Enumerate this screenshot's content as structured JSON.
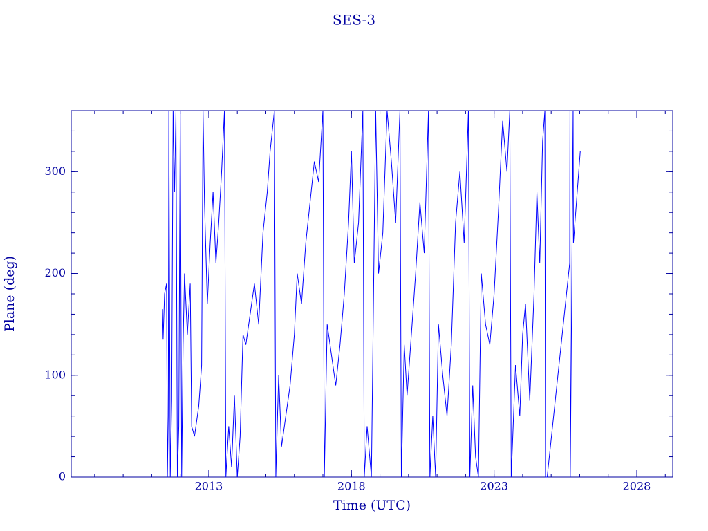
{
  "chart_data": {
    "type": "line",
    "title": "SES-3",
    "xlabel": "Time (UTC)",
    "ylabel": "Plane (deg)",
    "xlim": [
      2008.18,
      2029.26
    ],
    "xticks": [
      2013,
      2018,
      2023,
      2028
    ],
    "ylim": [
      0,
      360
    ],
    "yticks": [
      0,
      100,
      200,
      300
    ],
    "axis_color": "#0000a0",
    "series": [
      {
        "name": "SES-3",
        "color": "#0000ff",
        "x": [
          2011.38,
          2011.4,
          2011.45,
          2011.52,
          2011.55,
          2011.58,
          2011.6,
          2011.65,
          2011.7,
          2011.75,
          2011.8,
          2011.85,
          2011.9,
          2011.95,
          2012.0,
          2012.05,
          2012.1,
          2012.15,
          2012.25,
          2012.35,
          2012.4,
          2012.5,
          2012.65,
          2012.75,
          2012.8,
          2012.85,
          2012.95,
          2013.05,
          2013.15,
          2013.25,
          2013.35,
          2013.45,
          2013.55,
          2013.6,
          2013.7,
          2013.8,
          2013.9,
          2014.0,
          2014.1,
          2014.2,
          2014.3,
          2014.45,
          2014.6,
          2014.75,
          2014.9,
          2015.05,
          2015.15,
          2015.3,
          2015.35,
          2015.45,
          2015.55,
          2015.7,
          2015.85,
          2016.0,
          2016.1,
          2016.25,
          2016.4,
          2016.55,
          2016.7,
          2016.85,
          2017.0,
          2017.05,
          2017.15,
          2017.3,
          2017.45,
          2017.6,
          2017.75,
          2017.9,
          2018.0,
          2018.1,
          2018.25,
          2018.4,
          2018.45,
          2018.55,
          2018.7,
          2018.85,
          2018.95,
          2019.1,
          2019.25,
          2019.4,
          2019.55,
          2019.7,
          2019.75,
          2019.85,
          2019.95,
          2020.1,
          2020.25,
          2020.4,
          2020.55,
          2020.7,
          2020.75,
          2020.85,
          2020.95,
          2021.05,
          2021.2,
          2021.35,
          2021.5,
          2021.65,
          2021.8,
          2021.95,
          2022.1,
          2022.15,
          2022.25,
          2022.35,
          2022.45,
          2022.55,
          2022.7,
          2022.85,
          2023.0,
          2023.15,
          2023.3,
          2023.45,
          2023.55,
          2023.6,
          2023.75,
          2023.9,
          2024.0,
          2024.1,
          2024.25,
          2024.4,
          2024.5,
          2024.6,
          2024.7,
          2024.78,
          2024.8,
          2024.86,
          2025.65,
          2025.66,
          2025.67,
          2025.77,
          2025.78,
          2026.02
        ],
        "values": [
          165,
          135,
          180,
          190,
          0,
          60,
          360,
          0,
          75,
          360,
          280,
          360,
          0,
          50,
          360,
          0,
          130,
          200,
          140,
          190,
          50,
          40,
          70,
          110,
          360,
          270,
          170,
          230,
          280,
          210,
          250,
          300,
          360,
          0,
          50,
          10,
          80,
          0,
          40,
          140,
          130,
          160,
          190,
          150,
          240,
          280,
          320,
          360,
          0,
          100,
          30,
          60,
          90,
          140,
          200,
          170,
          230,
          270,
          310,
          290,
          360,
          0,
          150,
          120,
          90,
          130,
          180,
          250,
          320,
          210,
          250,
          360,
          0,
          50,
          0,
          360,
          200,
          240,
          360,
          310,
          250,
          360,
          0,
          130,
          80,
          140,
          200,
          270,
          220,
          360,
          0,
          60,
          0,
          150,
          100,
          60,
          130,
          250,
          300,
          230,
          360,
          0,
          90,
          20,
          0,
          200,
          150,
          130,
          180,
          260,
          350,
          300,
          360,
          0,
          110,
          60,
          140,
          170,
          75,
          180,
          280,
          210,
          330,
          360,
          0,
          0,
          210,
          360,
          0,
          360,
          230,
          320
        ]
      }
    ]
  }
}
